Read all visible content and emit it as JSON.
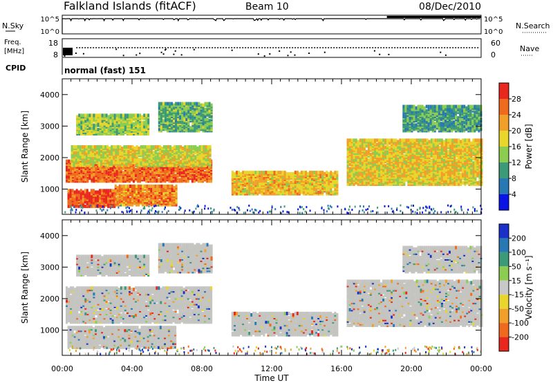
{
  "header": {
    "title": "Falkland Islands (fitACF)",
    "beam": "Beam 10",
    "date": "08/Dec/2010"
  },
  "top_panels": {
    "nsky": {
      "label": "N.Sky",
      "ticks": [
        "10^5",
        "10^0"
      ]
    },
    "nsearch": {
      "label": "N.Search",
      "ticks": [
        "10^5",
        "10^0"
      ]
    },
    "freq": {
      "label": "Freq.",
      "unit": "[MHz]",
      "ticks": [
        "18",
        "8"
      ]
    },
    "nave": {
      "label": "Nave",
      "ticks": [
        "60",
        "0"
      ]
    },
    "cpid": {
      "label": "CPID",
      "value": "normal (fast) 151"
    }
  },
  "colors": {
    "power": [
      "#0a14e6",
      "#2878b4",
      "#3c9a78",
      "#8ccc50",
      "#e8d62a",
      "#f0a028",
      "#f06a1e",
      "#e8281e"
    ],
    "velocity": [
      "#e8281e",
      "#f06a1e",
      "#f0a028",
      "#e8d62a",
      "#c8c8c8",
      "#8ccc50",
      "#3c9a78",
      "#2878b4",
      "#1a30c8"
    ],
    "ground_scatter": "#c4c4c0"
  },
  "chart_data": [
    {
      "type": "heatmap",
      "name": "power-panel",
      "ylabel": "Slant Range [km]",
      "y_ticks": [
        "1000",
        "2000",
        "3000",
        "4000"
      ],
      "ylim": [
        200,
        4500
      ],
      "xlim": [
        0,
        24
      ],
      "colorbar": {
        "label": "Power [dB]",
        "ticks": [
          "4",
          "8",
          "12",
          "16",
          "20",
          "24",
          "28"
        ],
        "range": [
          0,
          32
        ]
      },
      "bands": [
        {
          "t": [
            0.2,
            8.6
          ],
          "r": [
            1200,
            1850
          ],
          "level": 24
        },
        {
          "t": [
            0.5,
            8.5
          ],
          "r": [
            1700,
            2300
          ],
          "level": 15
        },
        {
          "t": [
            0.3,
            3.0
          ],
          "r": [
            400,
            900
          ],
          "level": 26
        },
        {
          "t": [
            3.0,
            6.5
          ],
          "r": [
            450,
            1050
          ],
          "level": 22
        },
        {
          "t": [
            0.8,
            5.0
          ],
          "r": [
            2700,
            3300
          ],
          "level": 13
        },
        {
          "t": [
            5.5,
            8.5
          ],
          "r": [
            2800,
            3700
          ],
          "level": 10
        },
        {
          "t": [
            9.7,
            15.8
          ],
          "r": [
            800,
            1500
          ],
          "level": 18
        },
        {
          "t": [
            16.3,
            24.0
          ],
          "r": [
            1100,
            2500
          ],
          "level": 17
        },
        {
          "t": [
            19.5,
            24.0
          ],
          "r": [
            2800,
            3600
          ],
          "level": 8
        }
      ]
    },
    {
      "type": "heatmap",
      "name": "velocity-panel",
      "ylabel": "Slant Range [km]",
      "y_ticks": [
        "1000",
        "2000",
        "3000",
        "4000"
      ],
      "ylim": [
        200,
        4500
      ],
      "xlim": [
        0,
        24
      ],
      "colorbar": {
        "label": "Velocity [m s⁻¹]",
        "ticks": [
          "200",
          "100",
          "50",
          "15",
          "-15",
          "-50",
          "-100",
          "-200"
        ],
        "range": [
          -250,
          250
        ]
      },
      "bands": [
        {
          "t": [
            0.2,
            8.6
          ],
          "r": [
            1200,
            2300
          ],
          "level": 0
        },
        {
          "t": [
            0.3,
            6.5
          ],
          "r": [
            400,
            1050
          ],
          "level": 0
        },
        {
          "t": [
            0.8,
            5.0
          ],
          "r": [
            2700,
            3300
          ],
          "level": 0
        },
        {
          "t": [
            5.5,
            8.5
          ],
          "r": [
            2800,
            3700
          ],
          "level": 0
        },
        {
          "t": [
            9.7,
            15.8
          ],
          "r": [
            800,
            1500
          ],
          "level": 0
        },
        {
          "t": [
            16.3,
            24.0
          ],
          "r": [
            1100,
            2500
          ],
          "level": 0
        },
        {
          "t": [
            19.5,
            24.0
          ],
          "r": [
            2800,
            3600
          ],
          "level": 0
        }
      ]
    }
  ],
  "x_axis": {
    "label": "Time UT",
    "ticks": [
      "00:00",
      "04:00",
      "08:00",
      "12:00",
      "16:00",
      "20:00",
      "00:00"
    ],
    "tick_hours": [
      0,
      4,
      8,
      12,
      16,
      20,
      24
    ]
  }
}
